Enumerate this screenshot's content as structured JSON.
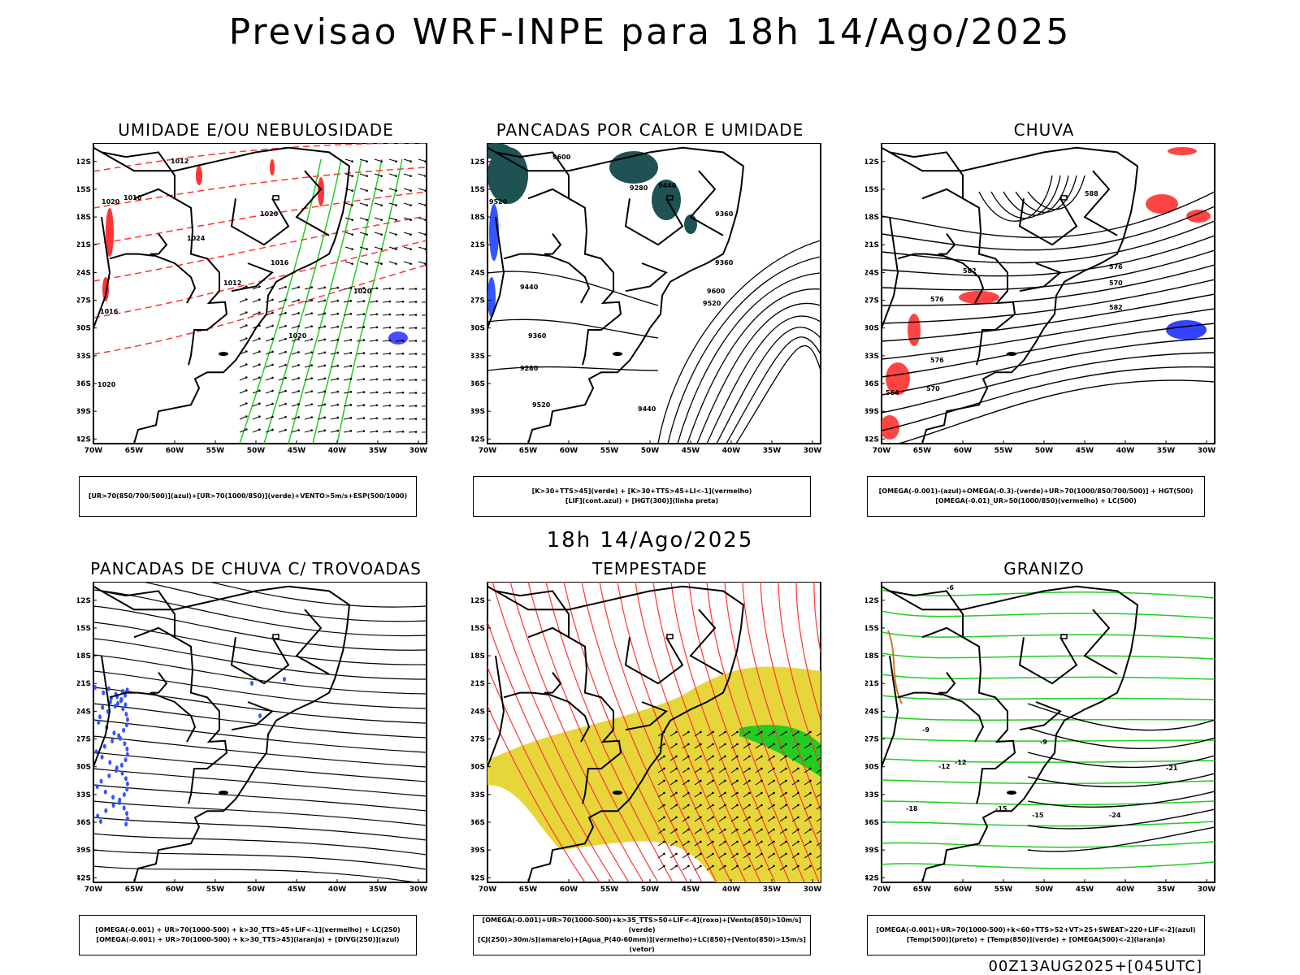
{
  "header": {
    "title": "Previsao WRF-INPE  para 18h 14/Ago/2025"
  },
  "middle": {
    "label": "18h 14/Ago/2025"
  },
  "footer": {
    "stamp": "00Z13AUG2025+[045UTC]"
  },
  "axes": {
    "lat_labels": [
      "12S",
      "15S",
      "18S",
      "21S",
      "24S",
      "27S",
      "30S",
      "33S",
      "36S",
      "39S",
      "42S"
    ],
    "lon_labels": [
      "70W",
      "65W",
      "60W",
      "55W",
      "50W",
      "45W",
      "40W",
      "35W",
      "30W"
    ]
  },
  "panels": [
    {
      "title": "UMIDADE E/OU NEBULOSIDADE",
      "legend": [
        "[UR>70(850/700/500)](azul)+[UR>70(1000/850)](verde)+VENTO>5m/s+ESP(500/1000)"
      ],
      "contour_labels": [
        "1012",
        "1016",
        "1020",
        "1024",
        "1020",
        "1016",
        "1012",
        "1020",
        "1020",
        "1016",
        "1020"
      ],
      "colors": {
        "moist_low": "#22cc22",
        "moist_high": "#4a4aff",
        "thickness": "#ff3333"
      }
    },
    {
      "title": "PANCADAS POR CALOR E UMIDADE",
      "legend": [
        "[K>30+TTS>45](verde) + [K>30+TTS>45+LI<-1](vermelho)",
        "[LIF](cont.azul) + [HGT(300)](linha preta)"
      ],
      "contour_labels": [
        "9600",
        "9520",
        "9440",
        "9360",
        "9280",
        "9520",
        "9440",
        "9360",
        "9600",
        "9520",
        "9440",
        "9360",
        "9280"
      ],
      "colors": {
        "fill": "#1f5252",
        "lif": "#3355ff"
      }
    },
    {
      "title": "CHUVA",
      "legend": [
        "[OMEGA(-0.001)-(azul)+OMEGA(-0.3)-(verde)+UR>70(1000/850/700/500)] + HGT(500)",
        "[OMEGA(-0.01)_UR>50(1000/850)(vermelho) + LC(500)"
      ],
      "contour_labels": [
        "588",
        "582",
        "576",
        "570",
        "576",
        "582",
        "576",
        "570",
        "564"
      ],
      "colors": {
        "rain": "#ff4444",
        "omega": "#3344ff"
      }
    },
    {
      "title": "PANCADAS DE CHUVA C/ TROVOADAS",
      "legend": [
        "[OMEGA(-0.001) + UR>70(1000-500) + k>30_TTS>45+LIF<-1](vermelho) + LC(250)",
        "[OMEGA(-0.001) + UR>70(1000-500) + k>30_TTS>45](laranja) + [DIVG(250)](azul)"
      ],
      "contour_labels": [],
      "colors": {
        "divg": "#3355ff"
      }
    },
    {
      "title": "TEMPESTADE",
      "legend": [
        "[OMEGA(-0.001)+UR>70(1000-500)+k>35_TTS>50+LIF<-4](roxo)+[Vento(850)>10m/s](verde)",
        "[CJ(250)>30m/s](amarelo)+[Agua_P(40-60mm)](vermelho)+LC(850)+[Vento(850)>15m/s](vetor)"
      ],
      "contour_labels": [],
      "colors": {
        "jet": "#e6d63a",
        "stream": "#ff3333",
        "wind": "#22cc22"
      }
    },
    {
      "title": "GRANIZO",
      "legend": [
        "[OMEGA(-0.001)+UR>70(1000-500)+k<60+TTS>52+VT>25+SWEAT>220+LIF<-2](azul)",
        "[Temp(500)](preto) + [Temp(850)](verde) + [OMEGA(500)<-2](laranja)"
      ],
      "contour_labels": [
        "-9",
        "-12",
        "-15",
        "-18",
        "-21",
        "-24",
        "-12",
        "-15",
        "-9",
        "-6"
      ],
      "colors": {
        "t850": "#22cc22",
        "omega": "#cc7722"
      }
    }
  ]
}
